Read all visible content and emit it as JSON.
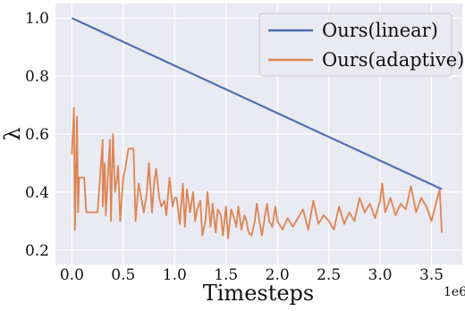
{
  "chart_data": {
    "type": "line",
    "title": "",
    "xlabel": "Timesteps",
    "ylabel": "λ",
    "x_scale_label": "1e6",
    "xlim": [
      -0.16,
      3.8
    ],
    "ylim": [
      0.15,
      1.05
    ],
    "x_ticks": [
      0.0,
      0.5,
      1.0,
      1.5,
      2.0,
      2.5,
      3.0,
      3.5
    ],
    "x_tick_labels": [
      "0.0",
      "0.5",
      "1.0",
      "1.5",
      "2.0",
      "2.5",
      "3.0",
      "3.5"
    ],
    "y_ticks": [
      0.2,
      0.4,
      0.6,
      0.8,
      1.0
    ],
    "y_tick_labels": [
      "0.2",
      "0.4",
      "0.6",
      "0.8",
      "1.0"
    ],
    "grid": true,
    "legend_position": "top-right",
    "background_color": "#EAEAF2",
    "series": [
      {
        "name": "Ours(linear)",
        "color": "#4C72B0",
        "x": [
          0.0,
          3.6
        ],
        "y": [
          1.0,
          0.41
        ]
      },
      {
        "name": "Ours(adaptive)",
        "color": "#DD8452",
        "x": [
          0.0,
          0.02,
          0.03,
          0.05,
          0.06,
          0.07,
          0.08,
          0.1,
          0.12,
          0.14,
          0.16,
          0.2,
          0.25,
          0.3,
          0.3,
          0.32,
          0.33,
          0.35,
          0.37,
          0.38,
          0.4,
          0.42,
          0.44,
          0.45,
          0.47,
          0.5,
          0.52,
          0.55,
          0.58,
          0.6,
          0.62,
          0.65,
          0.68,
          0.7,
          0.73,
          0.75,
          0.78,
          0.8,
          0.82,
          0.85,
          0.87,
          0.9,
          0.92,
          0.95,
          0.98,
          1.0,
          1.02,
          1.05,
          1.08,
          1.1,
          1.12,
          1.15,
          1.18,
          1.2,
          1.22,
          1.25,
          1.27,
          1.3,
          1.32,
          1.35,
          1.37,
          1.4,
          1.42,
          1.45,
          1.47,
          1.5,
          1.52,
          1.55,
          1.58,
          1.6,
          1.62,
          1.65,
          1.68,
          1.7,
          1.72,
          1.75,
          1.78,
          1.8,
          1.82,
          1.85,
          1.88,
          1.9,
          1.92,
          1.95,
          1.98,
          2.0,
          2.05,
          2.1,
          2.15,
          2.2,
          2.25,
          2.3,
          2.35,
          2.4,
          2.45,
          2.5,
          2.55,
          2.6,
          2.65,
          2.7,
          2.75,
          2.8,
          2.85,
          2.9,
          2.95,
          3.0,
          3.02,
          3.05,
          3.1,
          3.15,
          3.2,
          3.25,
          3.3,
          3.35,
          3.4,
          3.45,
          3.5,
          3.55,
          3.58,
          3.6
        ],
        "y": [
          0.53,
          0.69,
          0.27,
          0.66,
          0.33,
          0.45,
          0.45,
          0.45,
          0.45,
          0.33,
          0.33,
          0.33,
          0.33,
          0.58,
          0.35,
          0.5,
          0.32,
          0.45,
          0.58,
          0.3,
          0.6,
          0.4,
          0.45,
          0.49,
          0.3,
          0.45,
          0.48,
          0.55,
          0.55,
          0.55,
          0.3,
          0.43,
          0.37,
          0.33,
          0.4,
          0.5,
          0.33,
          0.43,
          0.48,
          0.38,
          0.35,
          0.37,
          0.32,
          0.45,
          0.35,
          0.38,
          0.38,
          0.29,
          0.43,
          0.28,
          0.41,
          0.33,
          0.4,
          0.3,
          0.34,
          0.37,
          0.25,
          0.3,
          0.4,
          0.28,
          0.36,
          0.26,
          0.34,
          0.32,
          0.25,
          0.35,
          0.24,
          0.34,
          0.31,
          0.28,
          0.35,
          0.27,
          0.32,
          0.3,
          0.26,
          0.25,
          0.3,
          0.36,
          0.31,
          0.25,
          0.32,
          0.36,
          0.3,
          0.28,
          0.35,
          0.3,
          0.27,
          0.31,
          0.28,
          0.31,
          0.34,
          0.27,
          0.37,
          0.29,
          0.32,
          0.3,
          0.27,
          0.35,
          0.29,
          0.33,
          0.3,
          0.38,
          0.33,
          0.36,
          0.31,
          0.37,
          0.43,
          0.33,
          0.38,
          0.32,
          0.36,
          0.34,
          0.42,
          0.33,
          0.38,
          0.35,
          0.3,
          0.37,
          0.41,
          0.26
        ]
      }
    ]
  }
}
